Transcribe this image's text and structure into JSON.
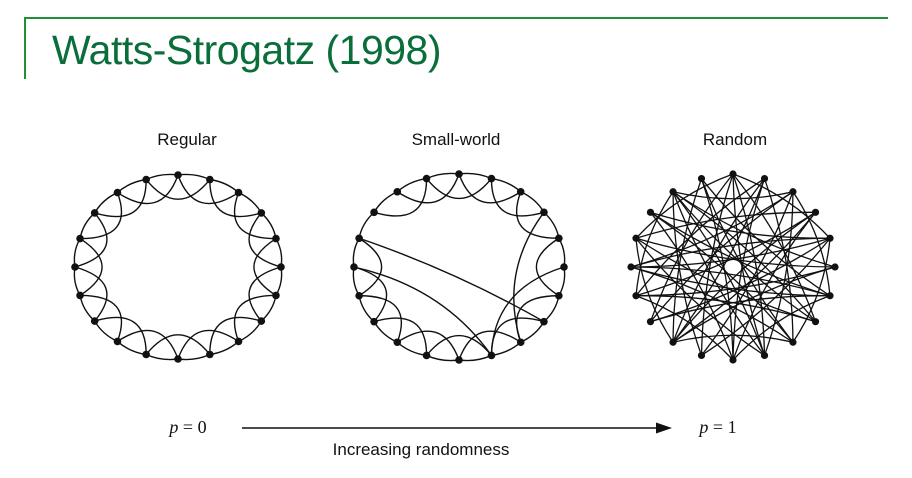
{
  "slide": {
    "title": "Watts-Strogatz (1998)",
    "title_color": "#0a6e3a",
    "rule_color": "#1f8f3a"
  },
  "networks": [
    {
      "label": "Regular",
      "nodes": 20,
      "neighbors_each_side": 2
    },
    {
      "label": "Small-world",
      "nodes": 20,
      "neighbors_each_side": 2
    },
    {
      "label": "Random",
      "nodes": 20
    }
  ],
  "axis": {
    "left_label": {
      "var": "p",
      "rest": " = 0"
    },
    "right_label": {
      "var": "p",
      "rest": " = 1"
    },
    "caption": "Increasing randomness"
  }
}
